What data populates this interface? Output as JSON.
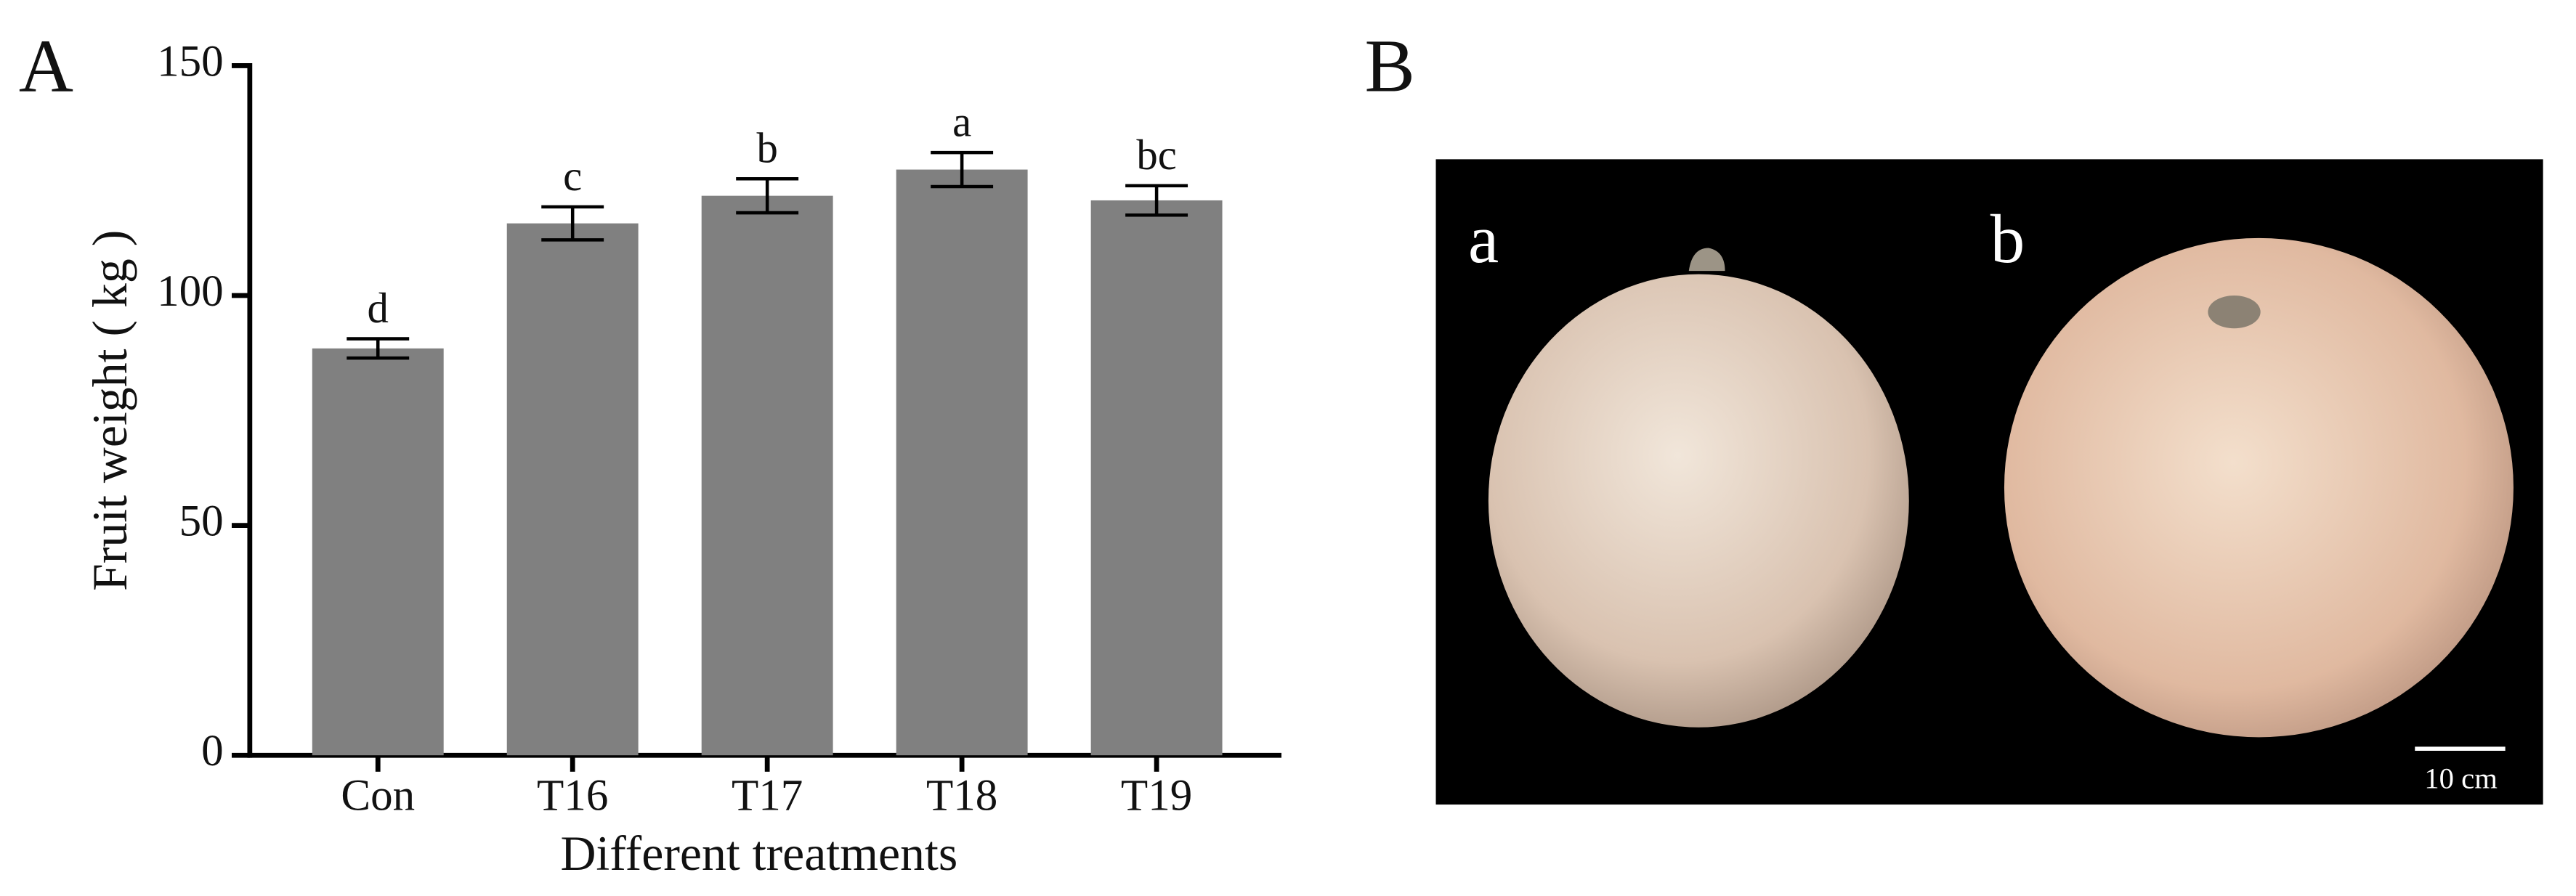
{
  "panel_labels": [
    "A",
    "B"
  ],
  "chart_data": {
    "type": "bar",
    "xlabel": "Different treatments",
    "ylabel": "Fruit weight ( kg )",
    "categories": [
      "Con",
      "T16",
      "T17",
      "T18",
      "T19"
    ],
    "values": [
      88.5,
      115.7,
      121.7,
      127.4,
      120.7
    ],
    "errors": [
      2.1,
      3.6,
      3.7,
      3.7,
      3.2
    ],
    "significance_labels": [
      "d",
      "c",
      "b",
      "a",
      "bc"
    ],
    "color": "#808080",
    "ylim": [
      0,
      150
    ],
    "yticks": [
      0,
      50,
      100,
      150
    ],
    "grid": false
  },
  "photo": {
    "labels": [
      "a",
      "b"
    ],
    "scale_bar": "10 cm"
  }
}
